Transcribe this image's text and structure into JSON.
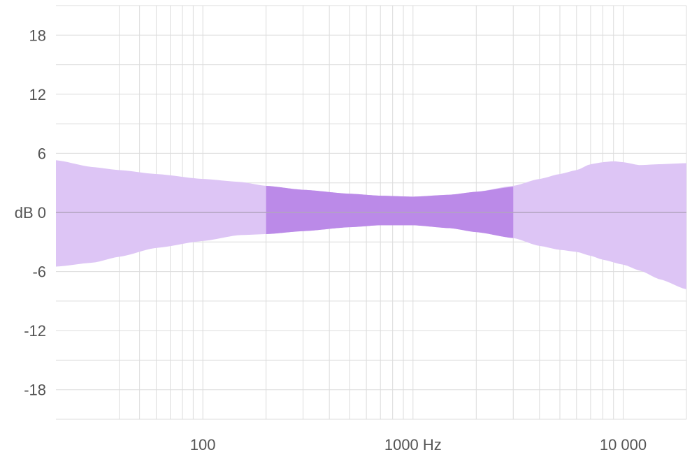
{
  "chart_data": {
    "type": "area",
    "x_scale": "log",
    "xlim": [
      20,
      20000
    ],
    "ylim": [
      -21,
      21
    ],
    "x_ticks": [
      {
        "value": 100,
        "label": "100"
      },
      {
        "value": 1000,
        "label": "1000 Hz"
      },
      {
        "value": 10000,
        "label": "10 000"
      }
    ],
    "x_minor_gridlines": [
      40,
      50,
      60,
      70,
      80,
      90,
      100,
      200,
      300,
      400,
      500,
      600,
      700,
      800,
      900,
      1000,
      2000,
      3000,
      4000,
      5000,
      6000,
      7000,
      8000,
      9000,
      10000,
      20000
    ],
    "y_ticks": [
      {
        "value": 18,
        "label": "18"
      },
      {
        "value": 12,
        "label": "12"
      },
      {
        "value": 6,
        "label": "6"
      },
      {
        "value": 0,
        "label": "dB 0"
      },
      {
        "value": -6,
        "label": "-6"
      },
      {
        "value": -12,
        "label": "-12"
      },
      {
        "value": -18,
        "label": "-18"
      }
    ],
    "y_gridlines": [
      21,
      18,
      15,
      12,
      9,
      6,
      3,
      0,
      -3,
      -6,
      -9,
      -12,
      -15,
      -18,
      -21
    ],
    "zero_line_color": "#b2a4bf",
    "grid": true,
    "series": [
      {
        "color": "#ddc5f5",
        "role": "outer-band",
        "upper": [
          [
            20,
            5.3
          ],
          [
            30,
            4.6
          ],
          [
            40,
            4.3
          ],
          [
            60,
            3.9
          ],
          [
            100,
            3.4
          ],
          [
            150,
            3.1
          ],
          [
            200,
            2.7
          ],
          [
            300,
            2.3
          ],
          [
            500,
            1.9
          ],
          [
            700,
            1.7
          ],
          [
            1000,
            1.6
          ],
          [
            1500,
            1.8
          ],
          [
            2000,
            2.1
          ],
          [
            3000,
            2.7
          ],
          [
            4000,
            3.4
          ],
          [
            5000,
            3.9
          ],
          [
            6000,
            4.3
          ],
          [
            7000,
            4.9
          ],
          [
            8000,
            5.1
          ],
          [
            9000,
            5.2
          ],
          [
            10000,
            5.1
          ],
          [
            12000,
            4.8
          ],
          [
            15000,
            4.9
          ],
          [
            20000,
            5.0
          ]
        ],
        "lower": [
          [
            20,
            -5.5
          ],
          [
            30,
            -5.1
          ],
          [
            40,
            -4.5
          ],
          [
            60,
            -3.6
          ],
          [
            100,
            -2.9
          ],
          [
            150,
            -2.3
          ],
          [
            200,
            -2.2
          ],
          [
            300,
            -1.9
          ],
          [
            500,
            -1.5
          ],
          [
            700,
            -1.3
          ],
          [
            1000,
            -1.3
          ],
          [
            1500,
            -1.6
          ],
          [
            2000,
            -2.0
          ],
          [
            3000,
            -2.6
          ],
          [
            4000,
            -3.4
          ],
          [
            5000,
            -3.8
          ],
          [
            6000,
            -4.0
          ],
          [
            7000,
            -4.4
          ],
          [
            8000,
            -4.8
          ],
          [
            10000,
            -5.3
          ],
          [
            12000,
            -5.9
          ],
          [
            15000,
            -6.8
          ],
          [
            20000,
            -7.8
          ]
        ]
      },
      {
        "color": "#bb8ae8",
        "role": "inner-band",
        "upper": [
          [
            200,
            2.7
          ],
          [
            300,
            2.3
          ],
          [
            500,
            1.9
          ],
          [
            700,
            1.7
          ],
          [
            1000,
            1.6
          ],
          [
            1500,
            1.8
          ],
          [
            2000,
            2.1
          ],
          [
            3000,
            2.6
          ]
        ],
        "lower": [
          [
            200,
            -2.2
          ],
          [
            300,
            -1.9
          ],
          [
            500,
            -1.5
          ],
          [
            700,
            -1.3
          ],
          [
            1000,
            -1.3
          ],
          [
            1500,
            -1.6
          ],
          [
            2000,
            -2.0
          ],
          [
            3000,
            -2.6
          ]
        ]
      }
    ]
  }
}
